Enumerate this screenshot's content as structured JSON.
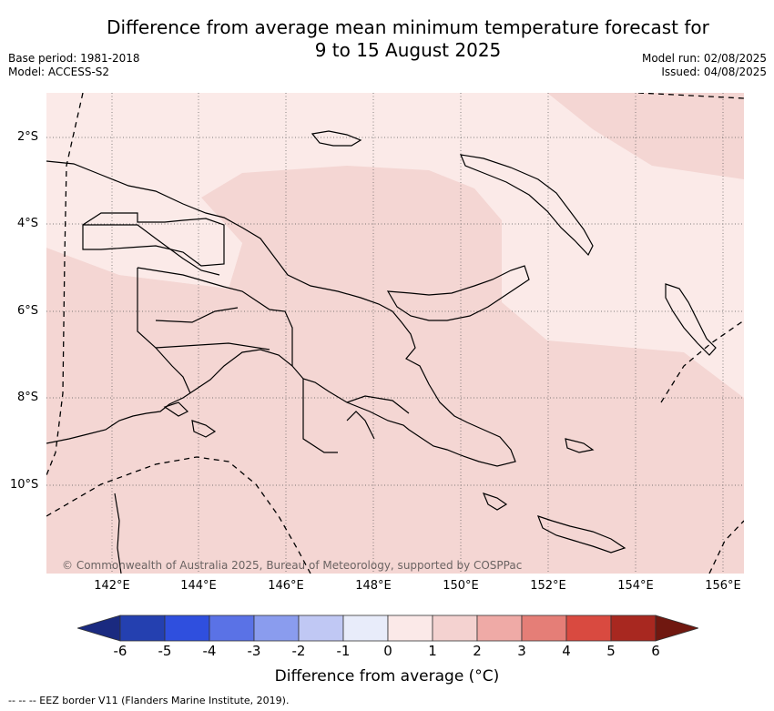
{
  "title_line1": "Difference from average mean minimum temperature forecast for",
  "title_line2": "9 to 15 August 2025",
  "base_period": "Base period: 1981-2018",
  "model": "Model: ACCESS-S2",
  "model_run": "Model run: 02/08/2025",
  "issued": "Issued: 04/08/2025",
  "lat_ticks": [
    "2°S",
    "4°S",
    "6°S",
    "8°S",
    "10°S"
  ],
  "lon_ticks": [
    "142°E",
    "144°E",
    "146°E",
    "148°E",
    "150°E",
    "152°E",
    "154°E",
    "156°E"
  ],
  "copyright": "© Commonwealth of Australia 2025, Bureau of Meteorology, supported by COSPPac",
  "colorbar": {
    "title": "Difference from average (°C)",
    "labels": [
      "-6",
      "-5",
      "-4",
      "-3",
      "-2",
      "-1",
      "0",
      "1",
      "2",
      "3",
      "4",
      "5",
      "6"
    ],
    "colors": [
      "#1a2a80",
      "#2440b0",
      "#2f4fde",
      "#5a72e6",
      "#8a9cee",
      "#c0c8f4",
      "#e8ecfa",
      "#fbe9e8",
      "#f4d2d0",
      "#efaaa6",
      "#e57e77",
      "#d94a40",
      "#a82820",
      "#701810"
    ]
  },
  "map_fills": {
    "light": "#fbeae8",
    "medium": "#f4d6d3",
    "border": "#000000"
  },
  "footnote": "--  --  -- EEZ border V11 (Flanders Marine Institute, 2019)."
}
